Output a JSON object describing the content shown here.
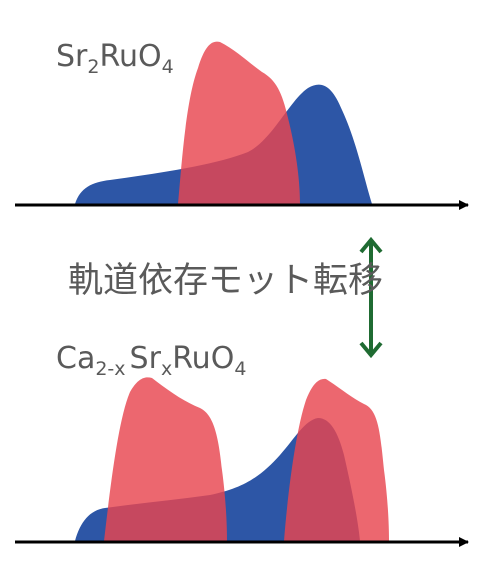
{
  "top_formula": {
    "base1": "Sr",
    "sub1": "2",
    "base2": "RuO",
    "sub2": "4"
  },
  "transition_label": "軌道依存モット転移",
  "bottom_formula": {
    "base1": "Ca",
    "sub1": "2-x",
    "base2": "Sr",
    "sub2": "x",
    "base3": "RuO",
    "sub3": "4"
  },
  "colors": {
    "red_band": "#e8454f",
    "blue_band": "#2d56a6",
    "axis": "#000000",
    "arrow": "#1f6b32",
    "text": "#5a5a5a"
  }
}
